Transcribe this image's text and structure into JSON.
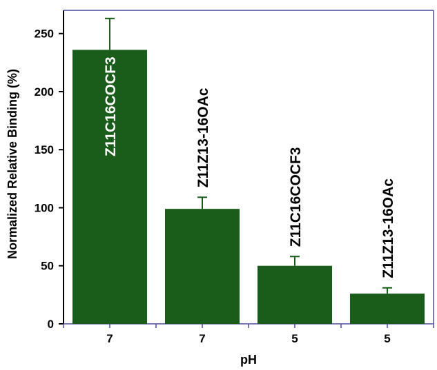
{
  "chart_data": {
    "type": "bar",
    "title": "",
    "xlabel": "pH",
    "ylabel": "Normalized Relative Binding (%)",
    "ylim": [
      0,
      270
    ],
    "yticks": [
      0,
      50,
      100,
      150,
      200,
      250
    ],
    "categories": [
      "7",
      "7",
      "5",
      "5"
    ],
    "values": [
      236,
      99,
      50,
      26
    ],
    "errors": [
      27,
      10,
      8,
      5
    ],
    "bar_labels": [
      "Z11C16COCF3",
      "Z11Z13-16OAc",
      "Z11C16COCF3",
      "Z11Z13-16OAc"
    ],
    "bar_label_inside": [
      true,
      false,
      false,
      false
    ],
    "grid": false,
    "legend": "none",
    "colors": {
      "bar": "#1a5c1a",
      "axis": "#4a4aa0",
      "label_inside": "#ffffff",
      "label_outside": "#000000"
    }
  }
}
